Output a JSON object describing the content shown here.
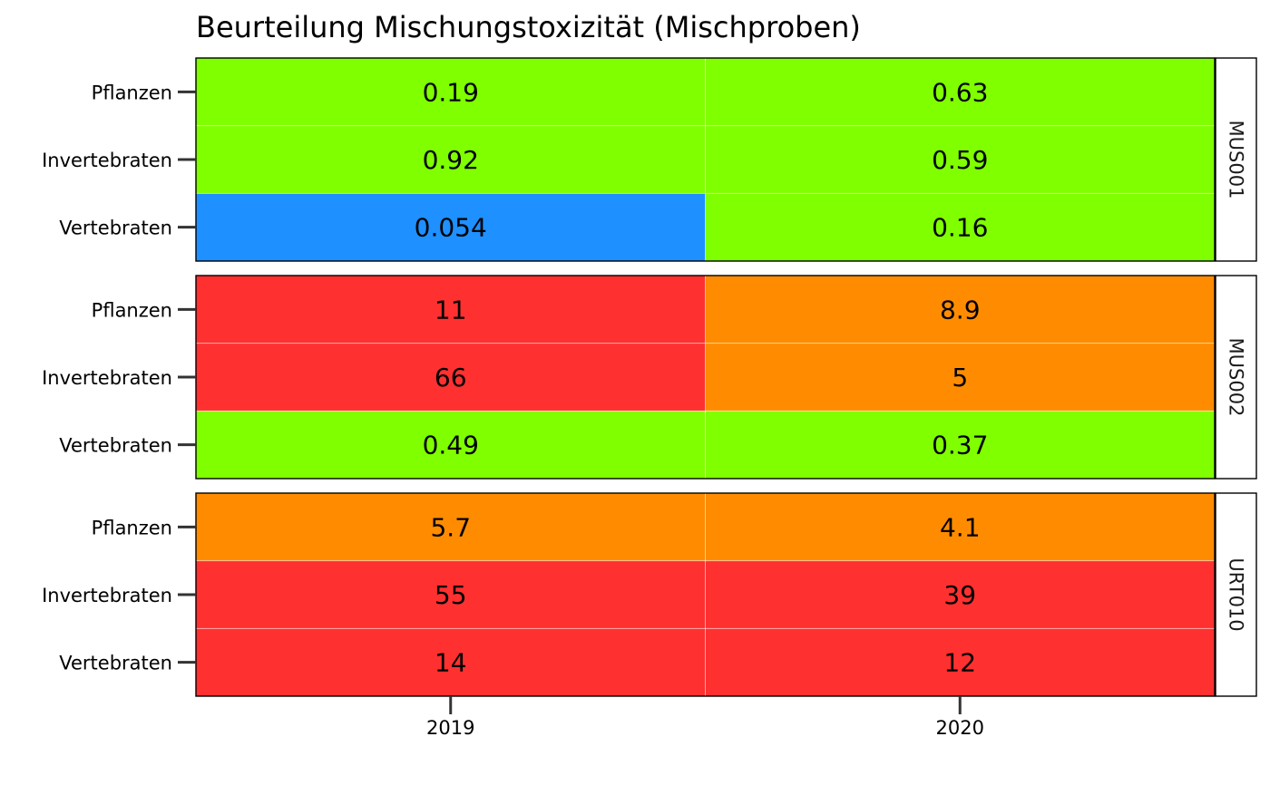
{
  "chart_data": {
    "type": "heatmap",
    "title": "Beurteilung Mischungstoxizität (Mischproben)",
    "xlabel": "",
    "ylabel": "",
    "x": [
      "2019",
      "2020"
    ],
    "y": [
      "Pflanzen",
      "Invertebraten",
      "Vertebraten"
    ],
    "facets": [
      {
        "name": "MUS001",
        "cells": [
          {
            "group": "Pflanzen",
            "year": "2019",
            "value": "0.19",
            "color": "#80ff00"
          },
          {
            "group": "Pflanzen",
            "year": "2020",
            "value": "0.63",
            "color": "#80ff00"
          },
          {
            "group": "Invertebraten",
            "year": "2019",
            "value": "0.92",
            "color": "#80ff00"
          },
          {
            "group": "Invertebraten",
            "year": "2020",
            "value": "0.59",
            "color": "#80ff00"
          },
          {
            "group": "Vertebraten",
            "year": "2019",
            "value": "0.054",
            "color": "#1e90ff"
          },
          {
            "group": "Vertebraten",
            "year": "2020",
            "value": "0.16",
            "color": "#80ff00"
          }
        ]
      },
      {
        "name": "MUS002",
        "cells": [
          {
            "group": "Pflanzen",
            "year": "2019",
            "value": "11",
            "color": "#ff3030"
          },
          {
            "group": "Pflanzen",
            "year": "2020",
            "value": "8.9",
            "color": "#ff8c00"
          },
          {
            "group": "Invertebraten",
            "year": "2019",
            "value": "66",
            "color": "#ff3030"
          },
          {
            "group": "Invertebraten",
            "year": "2020",
            "value": "5",
            "color": "#ff8c00"
          },
          {
            "group": "Vertebraten",
            "year": "2019",
            "value": "0.49",
            "color": "#80ff00"
          },
          {
            "group": "Vertebraten",
            "year": "2020",
            "value": "0.37",
            "color": "#80ff00"
          }
        ]
      },
      {
        "name": "URT010",
        "cells": [
          {
            "group": "Pflanzen",
            "year": "2019",
            "value": "5.7",
            "color": "#ff8c00"
          },
          {
            "group": "Pflanzen",
            "year": "2020",
            "value": "4.1",
            "color": "#ff8c00"
          },
          {
            "group": "Invertebraten",
            "year": "2019",
            "value": "55",
            "color": "#ff3030"
          },
          {
            "group": "Invertebraten",
            "year": "2020",
            "value": "39",
            "color": "#ff3030"
          },
          {
            "group": "Vertebraten",
            "year": "2019",
            "value": "14",
            "color": "#ff3030"
          },
          {
            "group": "Vertebraten",
            "year": "2020",
            "value": "12",
            "color": "#ff3030"
          }
        ]
      }
    ],
    "legend": "none",
    "grid": true
  }
}
